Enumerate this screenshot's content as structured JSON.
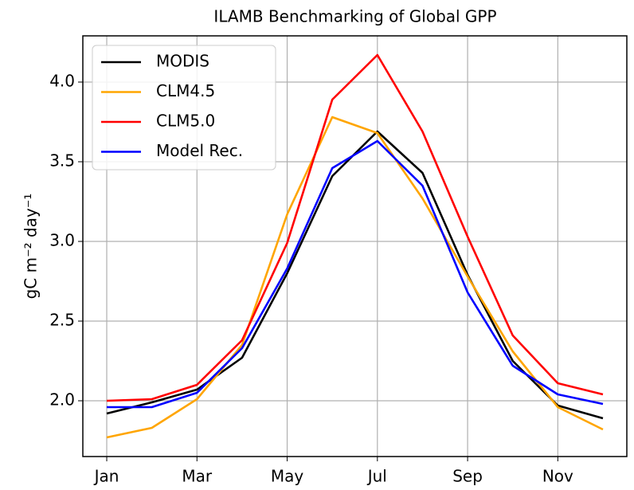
{
  "chart_data": {
    "type": "line",
    "title": "ILAMB Benchmarking of Global GPP",
    "y_label": "gC m⁻² day⁻¹",
    "categories": [
      "Jan",
      null,
      "Mar",
      null,
      "May",
      null,
      "Jul",
      null,
      "Sep",
      null,
      "Nov",
      null
    ],
    "series": [
      {
        "name": "MODIS",
        "color": "#000000",
        "values": [
          1.92,
          1.99,
          2.07,
          2.27,
          2.8,
          3.41,
          3.69,
          3.43,
          2.79,
          2.25,
          1.97,
          1.89
        ]
      },
      {
        "name": "CLM4.5",
        "color": "#ffa500",
        "values": [
          1.77,
          1.83,
          2.01,
          2.35,
          3.17,
          3.78,
          3.68,
          3.27,
          2.78,
          2.31,
          1.96,
          1.82
        ]
      },
      {
        "name": "CLM5.0",
        "color": "#ff0000",
        "values": [
          2.0,
          2.01,
          2.1,
          2.38,
          2.99,
          3.89,
          4.17,
          3.69,
          3.03,
          2.41,
          2.11,
          2.04
        ]
      },
      {
        "name": "Model Rec.",
        "color": "#0000ff",
        "values": [
          1.96,
          1.96,
          2.05,
          2.33,
          2.83,
          3.46,
          3.63,
          3.35,
          2.68,
          2.22,
          2.04,
          1.98
        ]
      }
    ],
    "ylim": [
      1.65,
      4.29
    ],
    "yticks": [
      {
        "value": 2,
        "label": "2.0"
      },
      2.5,
      {
        "value": 3,
        "label": "3.0"
      },
      3.5,
      {
        "value": 4,
        "label": "4.0"
      }
    ],
    "grid": true,
    "legend": "upper left"
  }
}
